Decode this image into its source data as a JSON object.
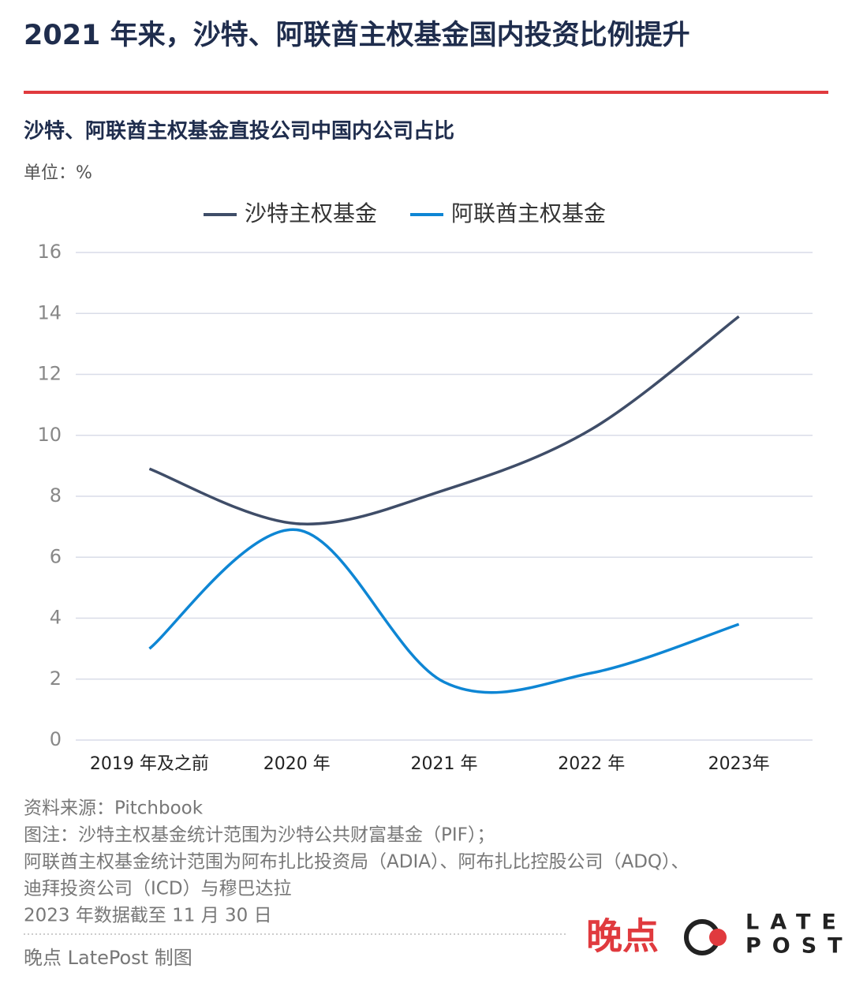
{
  "header": {
    "title": "2021 年来，沙特、阿联酋主权基金国内投资比例提升"
  },
  "chart_data": {
    "type": "line",
    "title": "沙特、阿联酋主权基金直投公司中国内公司占比",
    "unit": "单位：%",
    "categories": [
      "2019 年及之前",
      "2020 年",
      "2021 年",
      "2022 年",
      "2023年"
    ],
    "series": [
      {
        "name": "沙特主权基金",
        "color": "#3f4d68",
        "values": [
          8.9,
          7.1,
          8.2,
          10.2,
          13.9
        ]
      },
      {
        "name": "阿联酋主权基金",
        "color": "#0e86d4",
        "values": [
          3.0,
          6.9,
          1.9,
          2.2,
          3.8
        ]
      }
    ],
    "ylim": [
      0,
      16
    ],
    "yticks": [
      0,
      2,
      4,
      6,
      8,
      10,
      12,
      14,
      16
    ],
    "grid": true,
    "legend": "top"
  },
  "footer": {
    "notes": [
      "资料来源：Pitchbook",
      "图注：沙特主权基金统计范围为沙特公共财富基金（PIF）；",
      "阿联酋主权基金统计范围为阿布扎比投资局（ADIA）、阿布扎比控股公司（ADQ）、",
      "迪拜投资公司（ICD）与穆巴达拉",
      "2023 年数据截至 11 月 30 日"
    ],
    "credit": "晚点 LatePost 制图",
    "logo_cn": "晚点",
    "logo_en_top": "LATE",
    "logo_en_bottom": "POST"
  }
}
